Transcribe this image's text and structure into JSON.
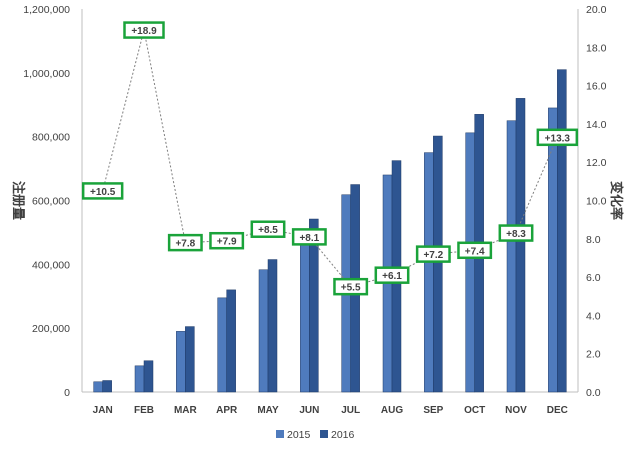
{
  "chart_data": {
    "type": "bar",
    "categories": [
      "JAN",
      "FEB",
      "MAR",
      "APR",
      "MAY",
      "JUN",
      "JUL",
      "AUG",
      "SEP",
      "OCT",
      "NOV",
      "DEC"
    ],
    "series": [
      {
        "name": "2015",
        "color": "#4f7bbd",
        "values": [
          32000,
          82000,
          190000,
          295000,
          383000,
          500000,
          618000,
          680000,
          750000,
          812000,
          850000,
          890000
        ]
      },
      {
        "name": "2016",
        "color": "#2e5591",
        "values": [
          36000,
          98000,
          205000,
          320000,
          415000,
          542000,
          650000,
          725000,
          802000,
          870000,
          920000,
          1010000
        ]
      }
    ],
    "change_series": {
      "values": [
        10.5,
        18.9,
        7.8,
        7.9,
        8.5,
        8.1,
        5.5,
        6.1,
        7.2,
        7.4,
        8.3,
        13.3
      ],
      "labels": [
        "+10.5",
        "+18.9",
        "+7.8",
        "+7.9",
        "+8.5",
        "+8.1",
        "+5.5",
        "+6.1",
        "+7.2",
        "+7.4",
        "+8.3",
        "+13.3"
      ],
      "label_border_color": "#1aa33a",
      "line_color": "#7f7f7f",
      "line_style": "dashed"
    },
    "ylabel": "注册量",
    "y2label": "变化率",
    "ylim": [
      0,
      1200000
    ],
    "y2lim": [
      0,
      20
    ],
    "yticks": [
      "0",
      "200,000",
      "400,000",
      "600,000",
      "800,000",
      "1,000,000",
      "1,200,000"
    ],
    "y2ticks": [
      "0.0",
      "2.0",
      "4.0",
      "6.0",
      "8.0",
      "10.0",
      "12.0",
      "14.0",
      "16.0",
      "18.0",
      "20.0"
    ],
    "grid": false,
    "legend": "bottom-center"
  }
}
